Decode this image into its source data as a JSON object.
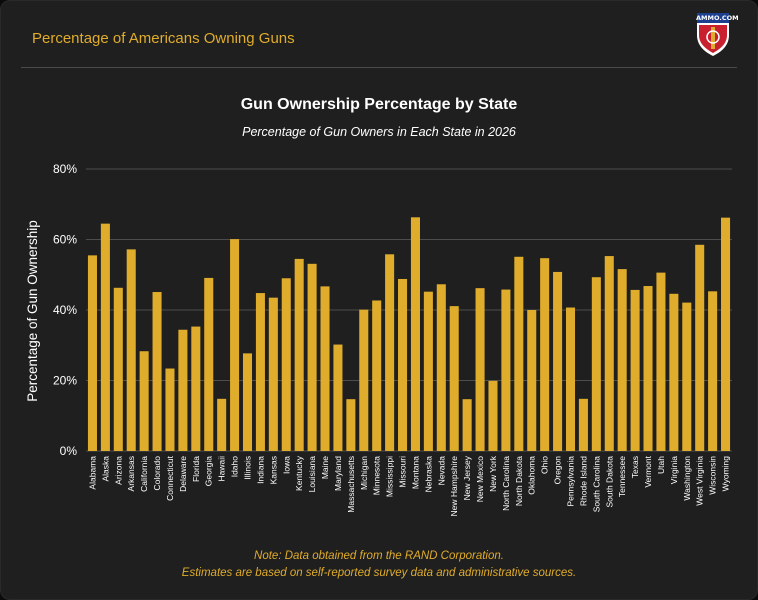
{
  "header": {
    "title": "Percentage of Americans Owning Guns",
    "logo_text": "AMMO.COM"
  },
  "colors": {
    "background": "#1f1f1f",
    "accent": "#e0ac2b",
    "bar": "#e0ac2b",
    "text": "#ffffff",
    "grid": "#4d4d4d"
  },
  "chart_data": {
    "type": "bar",
    "title": "Gun Ownership Percentage by State",
    "subtitle": "Percentage of Gun Owners in Each State in 2026",
    "xlabel": "",
    "ylabel": "Percentage of Gun Ownership",
    "ylim": [
      0,
      80
    ],
    "yticks": [
      "0%",
      "20%",
      "40%",
      "60%",
      "80%"
    ],
    "grid": true,
    "categories": [
      "Alabama",
      "Alaska",
      "Arizona",
      "Arkansas",
      "California",
      "Colorado",
      "Connecticut",
      "Delaware",
      "Florida",
      "Georgia",
      "Hawaii",
      "Idaho",
      "Illinois",
      "Indiana",
      "Kansas",
      "Iowa",
      "Kentucky",
      "Louisiana",
      "Maine",
      "Maryland",
      "Massachusetts",
      "Michigan",
      "Minnesota",
      "Mississippi",
      "Missouri",
      "Montana",
      "Nebraska",
      "Nevada",
      "New Hampshire",
      "New Jersey",
      "New Mexico",
      "New York",
      "North Carolina",
      "North Dakota",
      "Oklahoma",
      "Ohio",
      "Oregon",
      "Pennsylvania",
      "Rhode Island",
      "South Carolina",
      "South Dakota",
      "Tennessee",
      "Texas",
      "Vermont",
      "Utah",
      "Virginia",
      "Washington",
      "West Virginia",
      "Wisconsin",
      "Wyoming"
    ],
    "values": [
      55.5,
      64.5,
      46.3,
      57.2,
      28.3,
      45.1,
      23.4,
      34.4,
      35.3,
      49.1,
      14.8,
      60.1,
      27.7,
      44.8,
      43.5,
      49.0,
      54.5,
      53.1,
      46.7,
      30.2,
      14.7,
      40.1,
      42.7,
      55.8,
      48.8,
      66.3,
      45.2,
      47.3,
      41.1,
      14.7,
      46.2,
      19.9,
      45.8,
      55.1,
      40.0,
      54.7,
      50.8,
      40.7,
      14.8,
      49.3,
      55.3,
      51.6,
      45.7,
      46.8,
      50.6,
      44.6,
      42.1,
      58.5,
      45.3,
      66.2
    ],
    "note_lines": [
      "Note: Data obtained from the RAND Corporation.",
      "Estimates are based on self-reported survey data and administrative sources."
    ]
  }
}
